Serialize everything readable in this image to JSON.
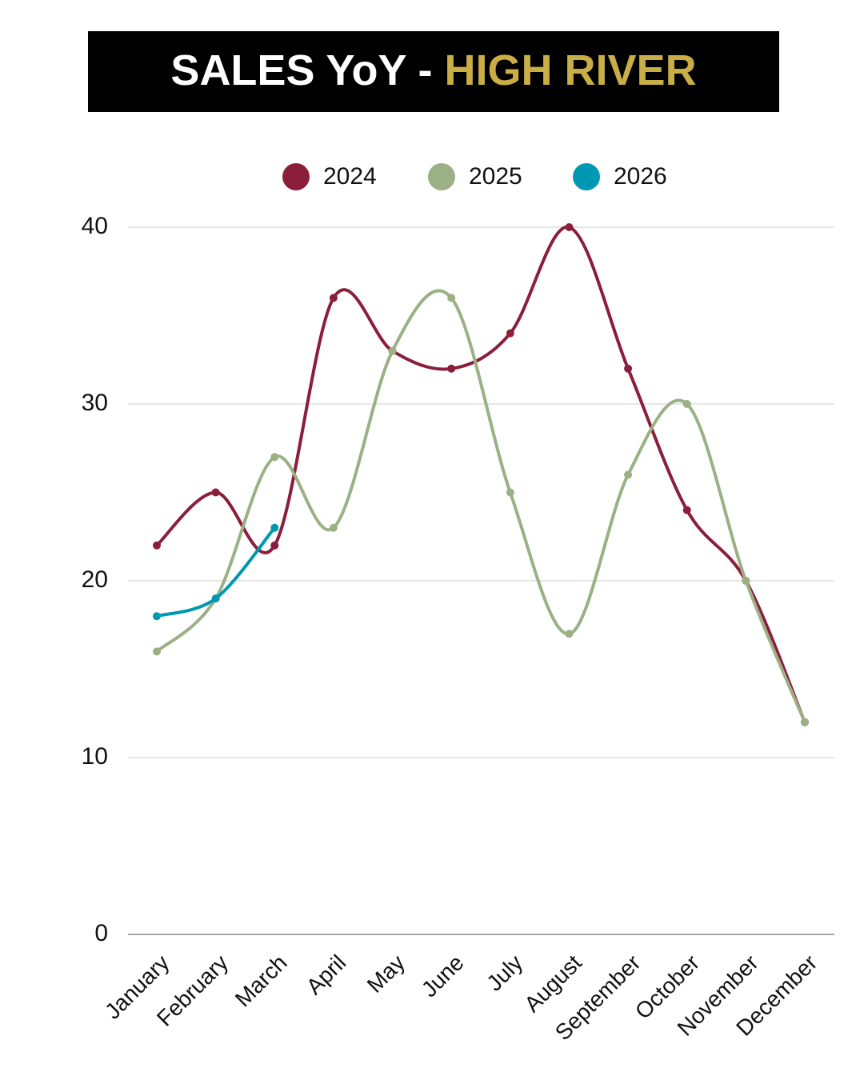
{
  "chart_data": {
    "type": "line",
    "title": [
      "SALES YoY -",
      "HIGH RIVER"
    ],
    "title_colors": [
      "#ffffff",
      "#c9ad45"
    ],
    "categories": [
      "January",
      "February",
      "March",
      "April",
      "May",
      "June",
      "July",
      "August",
      "September",
      "October",
      "November",
      "December"
    ],
    "series": [
      {
        "name": "2024",
        "color": "#8b1e3a",
        "values": [
          22,
          25,
          22,
          36,
          33,
          32,
          34,
          40,
          32,
          24,
          20,
          12
        ]
      },
      {
        "name": "2025",
        "color": "#9bb084",
        "values": [
          16,
          19,
          27,
          23,
          33,
          36,
          25,
          17,
          26,
          30,
          20,
          12
        ]
      },
      {
        "name": "2026",
        "color": "#0097b2",
        "values": [
          18,
          19,
          23,
          null,
          null,
          null,
          null,
          null,
          null,
          null,
          null,
          null
        ]
      }
    ],
    "ylim": [
      0,
      40
    ],
    "yticks": [
      0,
      10,
      20,
      30,
      40
    ],
    "grid": true,
    "smooth": true,
    "legend": "top"
  }
}
